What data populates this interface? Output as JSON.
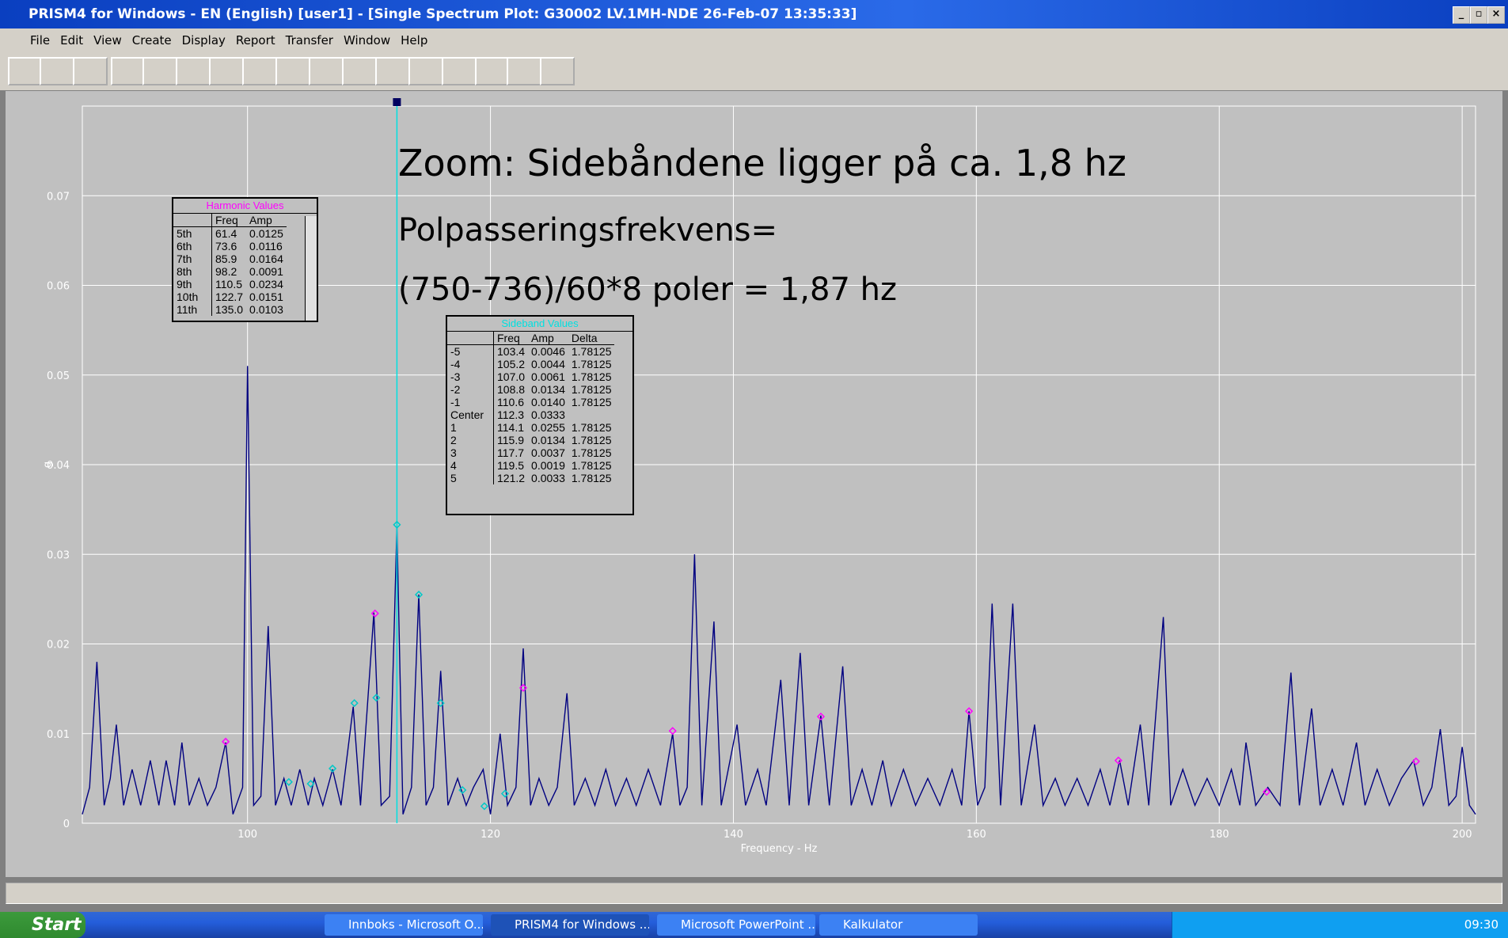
{
  "window": {
    "title": "PRISM4 for Windows - EN (English) [user1] - [Single Spectrum Plot: G30002  LV.1MH-NDE 26-Feb-07 13:35:33]",
    "menu": [
      "File",
      "Edit",
      "View",
      "Create",
      "Display",
      "Report",
      "Transfer",
      "Window",
      "Help"
    ]
  },
  "chart_data": {
    "type": "line",
    "x_label": "Frequency - Hz",
    "y_label": "g",
    "annotations": [
      "Zoom: Sidebåndene ligger på ca. 1,8 hz",
      "Polpasseringsfrekvens=",
      "(750-736)/60*8 poler = 1,87 hz"
    ],
    "xlim": [
      86.4,
      201.1
    ],
    "ylim": [
      0,
      0.08
    ],
    "xticks": [
      100,
      120,
      140,
      160,
      180,
      200
    ],
    "yticks": [
      0,
      0.01,
      0.02,
      0.03,
      0.04,
      0.05,
      0.06,
      0.07
    ],
    "grid": true,
    "spectrum": {
      "color": "#000080",
      "x": [
        86.4,
        87.0,
        87.6,
        88.2,
        88.7,
        89.2,
        89.8,
        90.5,
        91.2,
        92.0,
        92.7,
        93.3,
        94.0,
        94.6,
        95.2,
        96.0,
        96.7,
        97.4,
        98.2,
        98.8,
        99.6,
        100.0,
        100.5,
        101.1,
        101.7,
        102.3,
        103.0,
        103.6,
        104.3,
        105.0,
        105.5,
        106.2,
        107.0,
        107.7,
        108.7,
        109.3,
        110.4,
        111.0,
        111.7,
        112.3,
        112.8,
        113.5,
        114.1,
        114.7,
        115.3,
        115.9,
        116.5,
        117.3,
        118.0,
        118.6,
        119.4,
        120.0,
        120.8,
        121.4,
        122.1,
        122.7,
        123.3,
        124.0,
        124.8,
        125.5,
        126.3,
        126.9,
        127.8,
        128.6,
        129.5,
        130.3,
        131.2,
        132.0,
        133.0,
        134.0,
        135.0,
        135.6,
        136.2,
        136.8,
        137.4,
        138.4,
        139.0,
        140.3,
        141.0,
        142.0,
        142.7,
        143.9,
        144.6,
        145.5,
        146.2,
        147.2,
        147.9,
        149.0,
        149.7,
        150.6,
        151.4,
        152.3,
        153.0,
        154.0,
        155.0,
        156.0,
        157.0,
        158.0,
        158.8,
        159.4,
        160.1,
        160.7,
        161.3,
        162.0,
        163.0,
        163.7,
        164.8,
        165.5,
        166.5,
        167.3,
        168.3,
        169.2,
        170.2,
        171.0,
        171.8,
        172.5,
        173.5,
        174.2,
        175.4,
        176.0,
        177.0,
        178.0,
        179.0,
        180.0,
        181.0,
        181.7,
        182.2,
        183.0,
        184.0,
        185.0,
        185.9,
        186.6,
        187.6,
        188.3,
        189.3,
        190.2,
        191.3,
        192.0,
        193.0,
        194.0,
        195.0,
        196.0,
        196.8,
        197.5,
        198.2,
        198.9,
        199.5,
        200.0,
        200.6,
        201.1
      ],
      "values": [
        0.001,
        0.004,
        0.018,
        0.002,
        0.005,
        0.011,
        0.002,
        0.006,
        0.002,
        0.007,
        0.002,
        0.007,
        0.002,
        0.009,
        0.002,
        0.005,
        0.002,
        0.004,
        0.009,
        0.001,
        0.004,
        0.051,
        0.002,
        0.003,
        0.022,
        0.002,
        0.005,
        0.002,
        0.006,
        0.002,
        0.005,
        0.002,
        0.006,
        0.002,
        0.013,
        0.002,
        0.0235,
        0.002,
        0.003,
        0.033,
        0.001,
        0.004,
        0.0255,
        0.002,
        0.004,
        0.017,
        0.002,
        0.005,
        0.002,
        0.004,
        0.006,
        0.001,
        0.01,
        0.002,
        0.004,
        0.0195,
        0.002,
        0.005,
        0.002,
        0.004,
        0.0145,
        0.002,
        0.005,
        0.002,
        0.006,
        0.002,
        0.005,
        0.002,
        0.006,
        0.002,
        0.01,
        0.002,
        0.004,
        0.03,
        0.002,
        0.0225,
        0.002,
        0.011,
        0.002,
        0.006,
        0.002,
        0.016,
        0.002,
        0.019,
        0.002,
        0.012,
        0.002,
        0.0175,
        0.002,
        0.006,
        0.002,
        0.007,
        0.002,
        0.006,
        0.002,
        0.005,
        0.002,
        0.006,
        0.002,
        0.0125,
        0.002,
        0.004,
        0.0245,
        0.002,
        0.0245,
        0.002,
        0.011,
        0.002,
        0.005,
        0.002,
        0.005,
        0.002,
        0.006,
        0.002,
        0.007,
        0.002,
        0.011,
        0.002,
        0.023,
        0.002,
        0.006,
        0.002,
        0.005,
        0.002,
        0.006,
        0.002,
        0.009,
        0.002,
        0.004,
        0.002,
        0.0168,
        0.002,
        0.0128,
        0.002,
        0.006,
        0.002,
        0.009,
        0.002,
        0.006,
        0.002,
        0.005,
        0.007,
        0.002,
        0.004,
        0.0105,
        0.002,
        0.003,
        0.0085,
        0.002,
        0.001
      ]
    },
    "harmonic_markers": {
      "color": "#ff00ff",
      "x": [
        98.2,
        110.5,
        122.7,
        135.0,
        147.2,
        159.4,
        171.7,
        183.9,
        196.2
      ],
      "values": [
        0.0091,
        0.0234,
        0.0151,
        0.0103,
        0.0119,
        0.0125,
        0.007,
        0.0035,
        0.0069
      ]
    },
    "sideband_markers": {
      "color": "#00c8c8",
      "x": [
        103.4,
        105.2,
        107.0,
        108.8,
        110.6,
        112.3,
        114.1,
        115.9,
        117.7,
        119.5,
        121.2
      ],
      "values": [
        0.0046,
        0.0044,
        0.0061,
        0.0134,
        0.014,
        0.0333,
        0.0255,
        0.0134,
        0.0037,
        0.0019,
        0.0033
      ]
    },
    "cursor": {
      "x": 112.3,
      "color": "#00e0e0"
    }
  },
  "harmonic_table": {
    "title": "Harmonic Values",
    "columns": [
      "Freq",
      "Amp"
    ],
    "rows": [
      [
        "5th",
        "61.4",
        "0.0125"
      ],
      [
        "6th",
        "73.6",
        "0.0116"
      ],
      [
        "7th",
        "85.9",
        "0.0164"
      ],
      [
        "8th",
        "98.2",
        "0.0091"
      ],
      [
        "9th",
        "110.5",
        "0.0234"
      ],
      [
        "10th",
        "122.7",
        "0.0151"
      ],
      [
        "11th",
        "135.0",
        "0.0103"
      ]
    ]
  },
  "sideband_table": {
    "title": "Sideband Values",
    "columns": [
      "Freq",
      "Amp",
      "Delta"
    ],
    "rows": [
      [
        "-5",
        "103.4",
        "0.0046",
        "1.78125"
      ],
      [
        "-4",
        "105.2",
        "0.0044",
        "1.78125"
      ],
      [
        "-3",
        "107.0",
        "0.0061",
        "1.78125"
      ],
      [
        "-2",
        "108.8",
        "0.0134",
        "1.78125"
      ],
      [
        "-1",
        "110.6",
        "0.0140",
        "1.78125"
      ],
      [
        "Center",
        "112.3",
        "0.0333"
      ],
      [
        "1",
        "114.1",
        "0.0255",
        "1.78125"
      ],
      [
        "2",
        "115.9",
        "0.0134",
        "1.78125"
      ],
      [
        "3",
        "117.7",
        "0.0037",
        "1.78125"
      ],
      [
        "4",
        "119.5",
        "0.0019",
        "1.78125"
      ],
      [
        "5",
        "121.2",
        "0.0033",
        "1.78125"
      ]
    ]
  },
  "taskbar": {
    "start": "Start",
    "tasks": [
      "Innboks - Microsoft O...",
      "PRISM4 for Windows ...",
      "Microsoft PowerPoint ...",
      "Kalkulator"
    ],
    "clock": "09:30"
  }
}
